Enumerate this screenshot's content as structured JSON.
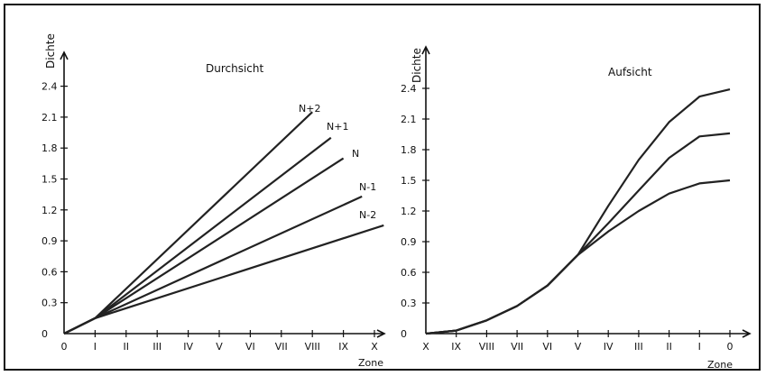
{
  "chart_data": [
    {
      "type": "line",
      "title": "Durchsicht",
      "ylabel": "Dichte",
      "xlabel": "Zone",
      "ylim": [
        0,
        2.6
      ],
      "yticks": [
        "0",
        "0.3",
        "0.6",
        "0.9",
        "1.2",
        "1.5",
        "1.8",
        "2.1",
        "2.4"
      ],
      "categories": [
        "0",
        "I",
        "II",
        "III",
        "IV",
        "V",
        "VI",
        "VII",
        "VIII",
        "IX",
        "X"
      ],
      "series": [
        {
          "name": "N+2",
          "x": [
            0,
            1,
            8
          ],
          "y": [
            0,
            0.15,
            2.15
          ]
        },
        {
          "name": "N+1",
          "x": [
            0,
            1,
            8.6
          ],
          "y": [
            0,
            0.15,
            1.9
          ]
        },
        {
          "name": "N",
          "x": [
            0,
            1,
            9.0
          ],
          "y": [
            0,
            0.15,
            1.7
          ]
        },
        {
          "name": "N-1",
          "x": [
            0,
            1,
            9.6
          ],
          "y": [
            0,
            0.15,
            1.33
          ]
        },
        {
          "name": "N-2",
          "x": [
            0,
            1,
            10.3
          ],
          "y": [
            0,
            0.15,
            1.05
          ]
        }
      ]
    },
    {
      "type": "line",
      "title": "Aufsicht",
      "ylabel": "Dichte",
      "xlabel": "Zone",
      "ylim": [
        0,
        2.6
      ],
      "yticks": [
        "0",
        "0.3",
        "0.6",
        "0.9",
        "1.2",
        "1.5",
        "1.8",
        "2.1",
        "2.4"
      ],
      "categories": [
        "X",
        "IX",
        "VIII",
        "VII",
        "VI",
        "V",
        "IV",
        "III",
        "II",
        "I",
        "0"
      ],
      "series": [
        {
          "name": "",
          "x": [
            0,
            1,
            2,
            3,
            4,
            5,
            6,
            7,
            8,
            9,
            10
          ],
          "y": [
            0,
            0.03,
            0.13,
            0.27,
            0.47,
            0.77,
            1.25,
            1.7,
            2.07,
            2.32,
            2.39
          ]
        },
        {
          "name": "",
          "x": [
            0,
            1,
            2,
            3,
            4,
            5,
            6,
            7,
            8,
            9,
            10
          ],
          "y": [
            0,
            0.03,
            0.13,
            0.27,
            0.47,
            0.77,
            1.08,
            1.4,
            1.72,
            1.93,
            1.96
          ]
        },
        {
          "name": "",
          "x": [
            0,
            1,
            2,
            3,
            4,
            5,
            6,
            7,
            8,
            9,
            10
          ],
          "y": [
            0,
            0.03,
            0.13,
            0.27,
            0.47,
            0.77,
            1.0,
            1.2,
            1.37,
            1.47,
            1.5
          ]
        }
      ]
    }
  ]
}
